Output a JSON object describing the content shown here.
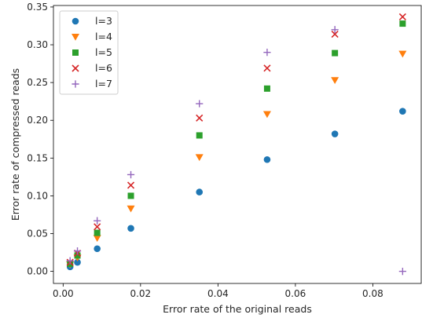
{
  "chart_data": {
    "type": "scatter",
    "title": "",
    "xlabel": "Error rate of the original reads",
    "ylabel": "Error rate of compressed reads",
    "xlim": [
      -0.0025,
      0.0925
    ],
    "ylim": [
      -0.016,
      0.352
    ],
    "x_ticks": [
      0.0,
      0.02,
      0.04,
      0.06,
      0.08
    ],
    "x_tick_labels": [
      "0.00",
      "0.02",
      "0.04",
      "0.06",
      "0.08"
    ],
    "y_ticks": [
      0.0,
      0.05,
      0.1,
      0.15,
      0.2,
      0.25,
      0.3,
      0.35
    ],
    "y_tick_labels": [
      "0.00",
      "0.05",
      "0.10",
      "0.15",
      "0.20",
      "0.25",
      "0.30",
      "0.35"
    ],
    "grid": false,
    "legend_position": "top-left",
    "x": [
      0.0018,
      0.0037,
      0.0088,
      0.0175,
      0.0352,
      0.0527,
      0.0702,
      0.0877
    ],
    "series": [
      {
        "name": "l=3",
        "marker": "circle",
        "color": "#1f77b4",
        "values": [
          0.006,
          0.012,
          0.03,
          0.057,
          0.105,
          0.148,
          0.182,
          0.212
        ]
      },
      {
        "name": "l=4",
        "marker": "triangle-down",
        "color": "#ff7f0e",
        "values": [
          0.009,
          0.018,
          0.044,
          0.083,
          0.151,
          0.208,
          0.253,
          0.288
        ]
      },
      {
        "name": "l=5",
        "marker": "square",
        "color": "#2ca02c",
        "values": [
          0.01,
          0.021,
          0.051,
          0.1,
          0.18,
          0.242,
          0.289,
          0.328
        ]
      },
      {
        "name": "l=6",
        "marker": "x",
        "color": "#d62728",
        "values": [
          0.012,
          0.024,
          0.059,
          0.114,
          0.203,
          0.269,
          0.314,
          0.337
        ]
      },
      {
        "name": "l=7",
        "marker": "plus",
        "color": "#9467bd",
        "values": [
          0.014,
          0.027,
          0.067,
          0.128,
          0.222,
          0.29,
          0.32,
          0.0
        ]
      }
    ]
  }
}
